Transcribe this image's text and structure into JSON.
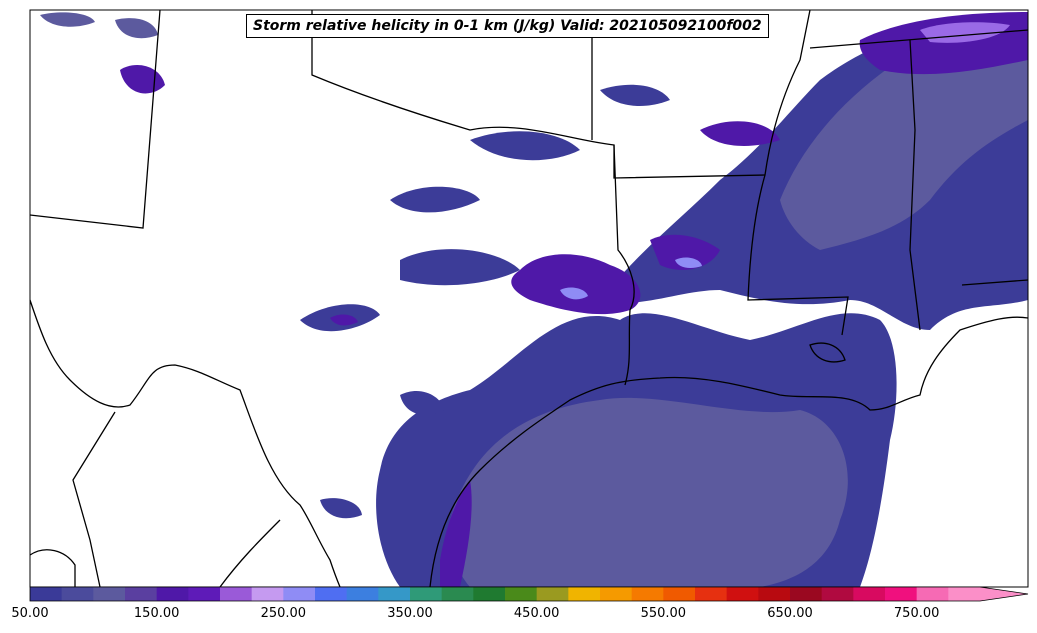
{
  "title": "Storm relative helicity in 0-1 km (J/kg) Valid: 202105092100f002",
  "colorbar": {
    "tick_labels": [
      "50.00",
      "150.00",
      "250.00",
      "350.00",
      "450.00",
      "550.00",
      "650.00",
      "750.00"
    ],
    "colors": [
      "#3a3a98",
      "#4b4b9c",
      "#5c5a9e",
      "#5a3fa0",
      "#4f18a8",
      "#5e1bb8",
      "#9a5ad8",
      "#c59af0",
      "#8f8cf5",
      "#4f6ef2",
      "#3c7fe0",
      "#3598c8",
      "#2f9a78",
      "#2a8a50",
      "#1f7a30",
      "#4a8a1a",
      "#9a9a20",
      "#f0b400",
      "#f59a00",
      "#f57a00",
      "#f05a00",
      "#e63010",
      "#d01010",
      "#b80a10",
      "#9a0820",
      "#b00a40",
      "#d80a60",
      "#f0107e",
      "#f66ab4",
      "#fb8fc8"
    ],
    "extend": "max"
  },
  "map": {
    "region": "South-central United States and Gulf of Mexico",
    "field_colors": {
      "base": "#3c3c98",
      "mid": "#5c5a9e",
      "strong": "#4f18a8",
      "peak": "#9a6ae6",
      "extreme": "#8f8cf5"
    }
  }
}
